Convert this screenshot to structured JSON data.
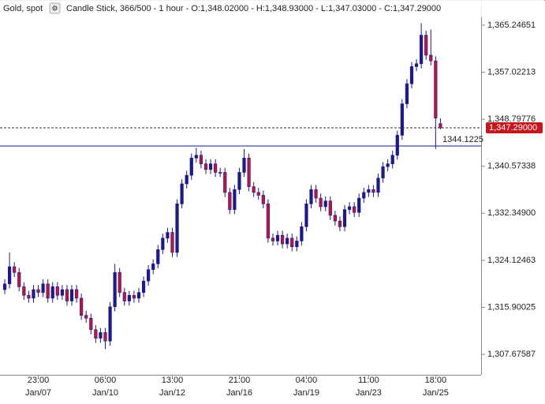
{
  "chart_data": {
    "type": "candlestick",
    "title": "Gold, spot",
    "subtitle": "Candle Stick, 366/500 - 1 hour - O:1,348.02000 - H:1,348.93000 - L:1,347.03000 - C:1,347.29000",
    "up_color": "#1a1a8c",
    "down_color": "#c0143c",
    "categories": [
      null,
      null,
      null,
      null,
      null,
      null,
      null,
      {
        "time": "23:00",
        "date": "Jan/07"
      },
      null,
      null,
      null,
      null,
      null,
      null,
      null,
      null,
      null,
      null,
      null,
      null,
      null,
      {
        "time": "06:00",
        "date": "Jan/10"
      },
      null,
      null,
      null,
      null,
      null,
      null,
      null,
      null,
      null,
      null,
      null,
      null,
      null,
      {
        "time": "13:00",
        "date": "Jan/12"
      },
      null,
      null,
      null,
      null,
      null,
      null,
      null,
      null,
      null,
      null,
      null,
      null,
      null,
      {
        "time": "21:00",
        "date": "Jan/16"
      },
      null,
      null,
      null,
      null,
      null,
      null,
      null,
      null,
      null,
      null,
      null,
      null,
      null,
      {
        "time": "04:00",
        "date": "Jan/19"
      },
      null,
      null,
      null,
      null,
      null,
      null,
      null,
      null,
      null,
      null,
      null,
      null,
      {
        "time": "11:00",
        "date": "Jan/23"
      },
      null,
      null,
      null,
      null,
      null,
      null,
      null,
      null,
      null,
      null,
      null,
      null,
      null,
      {
        "time": "18:00",
        "date": "Jan/25"
      },
      null
    ],
    "open": [
      1319.0,
      1320.0,
      1323.0,
      1322.0,
      1319.5,
      1318.0,
      1317.5,
      1319.0,
      1318.5,
      1320.0,
      1317.5,
      1319.5,
      1318.0,
      1319.0,
      1317.0,
      1319.0,
      1317.5,
      1314.5,
      1314.0,
      1312.0,
      1310.5,
      1311.5,
      1310.0,
      1316.0,
      1322.0,
      1318.5,
      1317.0,
      1318.0,
      1317.5,
      1318.5,
      1320.5,
      1322.5,
      1323.5,
      1326.0,
      1328.0,
      1329.0,
      1325.5,
      1334.0,
      1337.5,
      1339.0,
      1342.0,
      1342.5,
      1341.0,
      1340.0,
      1341.0,
      1339.5,
      1339.5,
      1336.0,
      1333.0,
      1336.5,
      1339.5,
      1342.0,
      1337.0,
      1336.0,
      1335.5,
      1334.0,
      1328.0,
      1327.5,
      1328.5,
      1327.0,
      1328.0,
      1326.5,
      1327.5,
      1330.0,
      1334.0,
      1336.5,
      1335.0,
      1333.5,
      1334.5,
      1332.0,
      1331.0,
      1330.0,
      1333.0,
      1333.5,
      1332.5,
      1335.0,
      1336.0,
      1336.5,
      1336.0,
      1338.5,
      1340.5,
      1341.0,
      1342.5,
      1346.0,
      1351.5,
      1355.0,
      1358.0,
      1358.5,
      1363.5,
      1360.0,
      1359.0,
      1348.02
    ],
    "high": [
      1320.8,
      1325.5,
      1323.8,
      1322.8,
      1320.3,
      1318.8,
      1319.8,
      1319.8,
      1320.8,
      1320.8,
      1320.3,
      1320.3,
      1319.8,
      1319.8,
      1319.8,
      1319.8,
      1318.3,
      1315.3,
      1314.8,
      1312.8,
      1312.3,
      1312.3,
      1316.8,
      1323.5,
      1322.8,
      1319.3,
      1318.8,
      1318.8,
      1319.3,
      1321.3,
      1323.3,
      1324.3,
      1326.8,
      1328.8,
      1329.8,
      1329.8,
      1334.8,
      1338.3,
      1339.8,
      1342.8,
      1343.8,
      1343.3,
      1341.8,
      1341.8,
      1341.8,
      1340.3,
      1340.3,
      1336.8,
      1337.3,
      1340.3,
      1343.6,
      1342.8,
      1337.8,
      1336.8,
      1336.3,
      1334.8,
      1328.8,
      1329.3,
      1329.3,
      1328.8,
      1328.8,
      1328.3,
      1330.8,
      1334.8,
      1337.3,
      1337.3,
      1335.8,
      1335.3,
      1335.3,
      1332.8,
      1331.8,
      1333.8,
      1334.3,
      1334.3,
      1335.8,
      1336.8,
      1337.3,
      1337.3,
      1339.3,
      1341.3,
      1341.8,
      1343.3,
      1346.8,
      1352.3,
      1355.8,
      1358.8,
      1359.3,
      1365.6,
      1364.3,
      1364.5,
      1359.8,
      1348.93
    ],
    "low": [
      1318.2,
      1319.2,
      1321.2,
      1318.7,
      1317.2,
      1316.7,
      1316.7,
      1317.7,
      1317.7,
      1316.7,
      1316.7,
      1317.2,
      1317.2,
      1316.2,
      1316.2,
      1316.7,
      1313.7,
      1313.2,
      1311.2,
      1309.7,
      1309.7,
      1308.6,
      1309.2,
      1315.2,
      1317.7,
      1316.2,
      1316.2,
      1316.7,
      1316.7,
      1317.7,
      1319.7,
      1321.7,
      1322.7,
      1325.2,
      1327.2,
      1324.7,
      1324.7,
      1333.2,
      1336.7,
      1338.2,
      1341.2,
      1340.2,
      1339.2,
      1339.2,
      1338.7,
      1338.7,
      1335.2,
      1332.2,
      1332.2,
      1335.7,
      1338.7,
      1336.2,
      1335.2,
      1334.7,
      1333.2,
      1327.2,
      1326.7,
      1326.7,
      1326.2,
      1326.2,
      1325.7,
      1325.7,
      1326.7,
      1329.2,
      1333.2,
      1334.2,
      1332.7,
      1332.7,
      1331.2,
      1330.2,
      1329.2,
      1329.2,
      1332.2,
      1331.7,
      1331.7,
      1334.2,
      1335.2,
      1335.2,
      1335.2,
      1337.7,
      1339.7,
      1340.2,
      1341.7,
      1345.2,
      1350.7,
      1354.2,
      1357.2,
      1357.7,
      1359.2,
      1358.2,
      1343.6,
      1347.03
    ],
    "close": [
      1320.0,
      1323.0,
      1322.0,
      1319.5,
      1318.0,
      1317.5,
      1319.0,
      1318.5,
      1320.0,
      1317.5,
      1319.5,
      1318.0,
      1319.0,
      1317.0,
      1319.0,
      1317.5,
      1314.5,
      1314.0,
      1312.0,
      1310.5,
      1311.5,
      1310.0,
      1316.0,
      1322.0,
      1318.5,
      1317.0,
      1318.0,
      1317.5,
      1318.5,
      1320.5,
      1322.5,
      1323.5,
      1326.0,
      1328.0,
      1329.0,
      1325.5,
      1334.0,
      1337.5,
      1339.0,
      1342.0,
      1342.5,
      1341.0,
      1340.0,
      1341.0,
      1339.5,
      1339.5,
      1336.0,
      1333.0,
      1336.5,
      1339.5,
      1342.0,
      1337.0,
      1336.0,
      1335.5,
      1334.0,
      1328.0,
      1327.5,
      1328.5,
      1327.0,
      1328.0,
      1326.5,
      1327.5,
      1330.0,
      1334.0,
      1336.5,
      1335.0,
      1333.5,
      1334.5,
      1332.0,
      1331.0,
      1330.0,
      1333.0,
      1333.5,
      1332.5,
      1335.0,
      1336.0,
      1336.5,
      1336.0,
      1338.5,
      1340.5,
      1341.0,
      1342.5,
      1346.0,
      1351.5,
      1355.0,
      1358.0,
      1358.5,
      1363.5,
      1360.0,
      1359.0,
      1349.0,
      1347.29
    ],
    "ylim": [
      1304.1,
      1369.65
    ],
    "yticks": [
      {
        "value": 1307.67587,
        "label": "1,307.67587"
      },
      {
        "value": 1315.90025,
        "label": "1,315.90025"
      },
      {
        "value": 1324.12463,
        "label": "1,324.12463"
      },
      {
        "value": 1332.349,
        "label": "1,332.34900"
      },
      {
        "value": 1340.57338,
        "label": "1,340.57338"
      },
      {
        "value": 1348.79776,
        "label": "1,348.79776"
      },
      {
        "value": 1357.02213,
        "label": "1,357.02213"
      },
      {
        "value": 1365.24651,
        "label": "1,365.24651"
      }
    ],
    "price_lines": [
      {
        "value": 1344.1225,
        "label": "1344.1225",
        "color": "#1a1a8c",
        "style": "solid"
      },
      {
        "value": 1347.29,
        "label": "1,347.29000",
        "color": "#333333",
        "style": "dashed",
        "label_color": "#c4161c"
      }
    ]
  }
}
